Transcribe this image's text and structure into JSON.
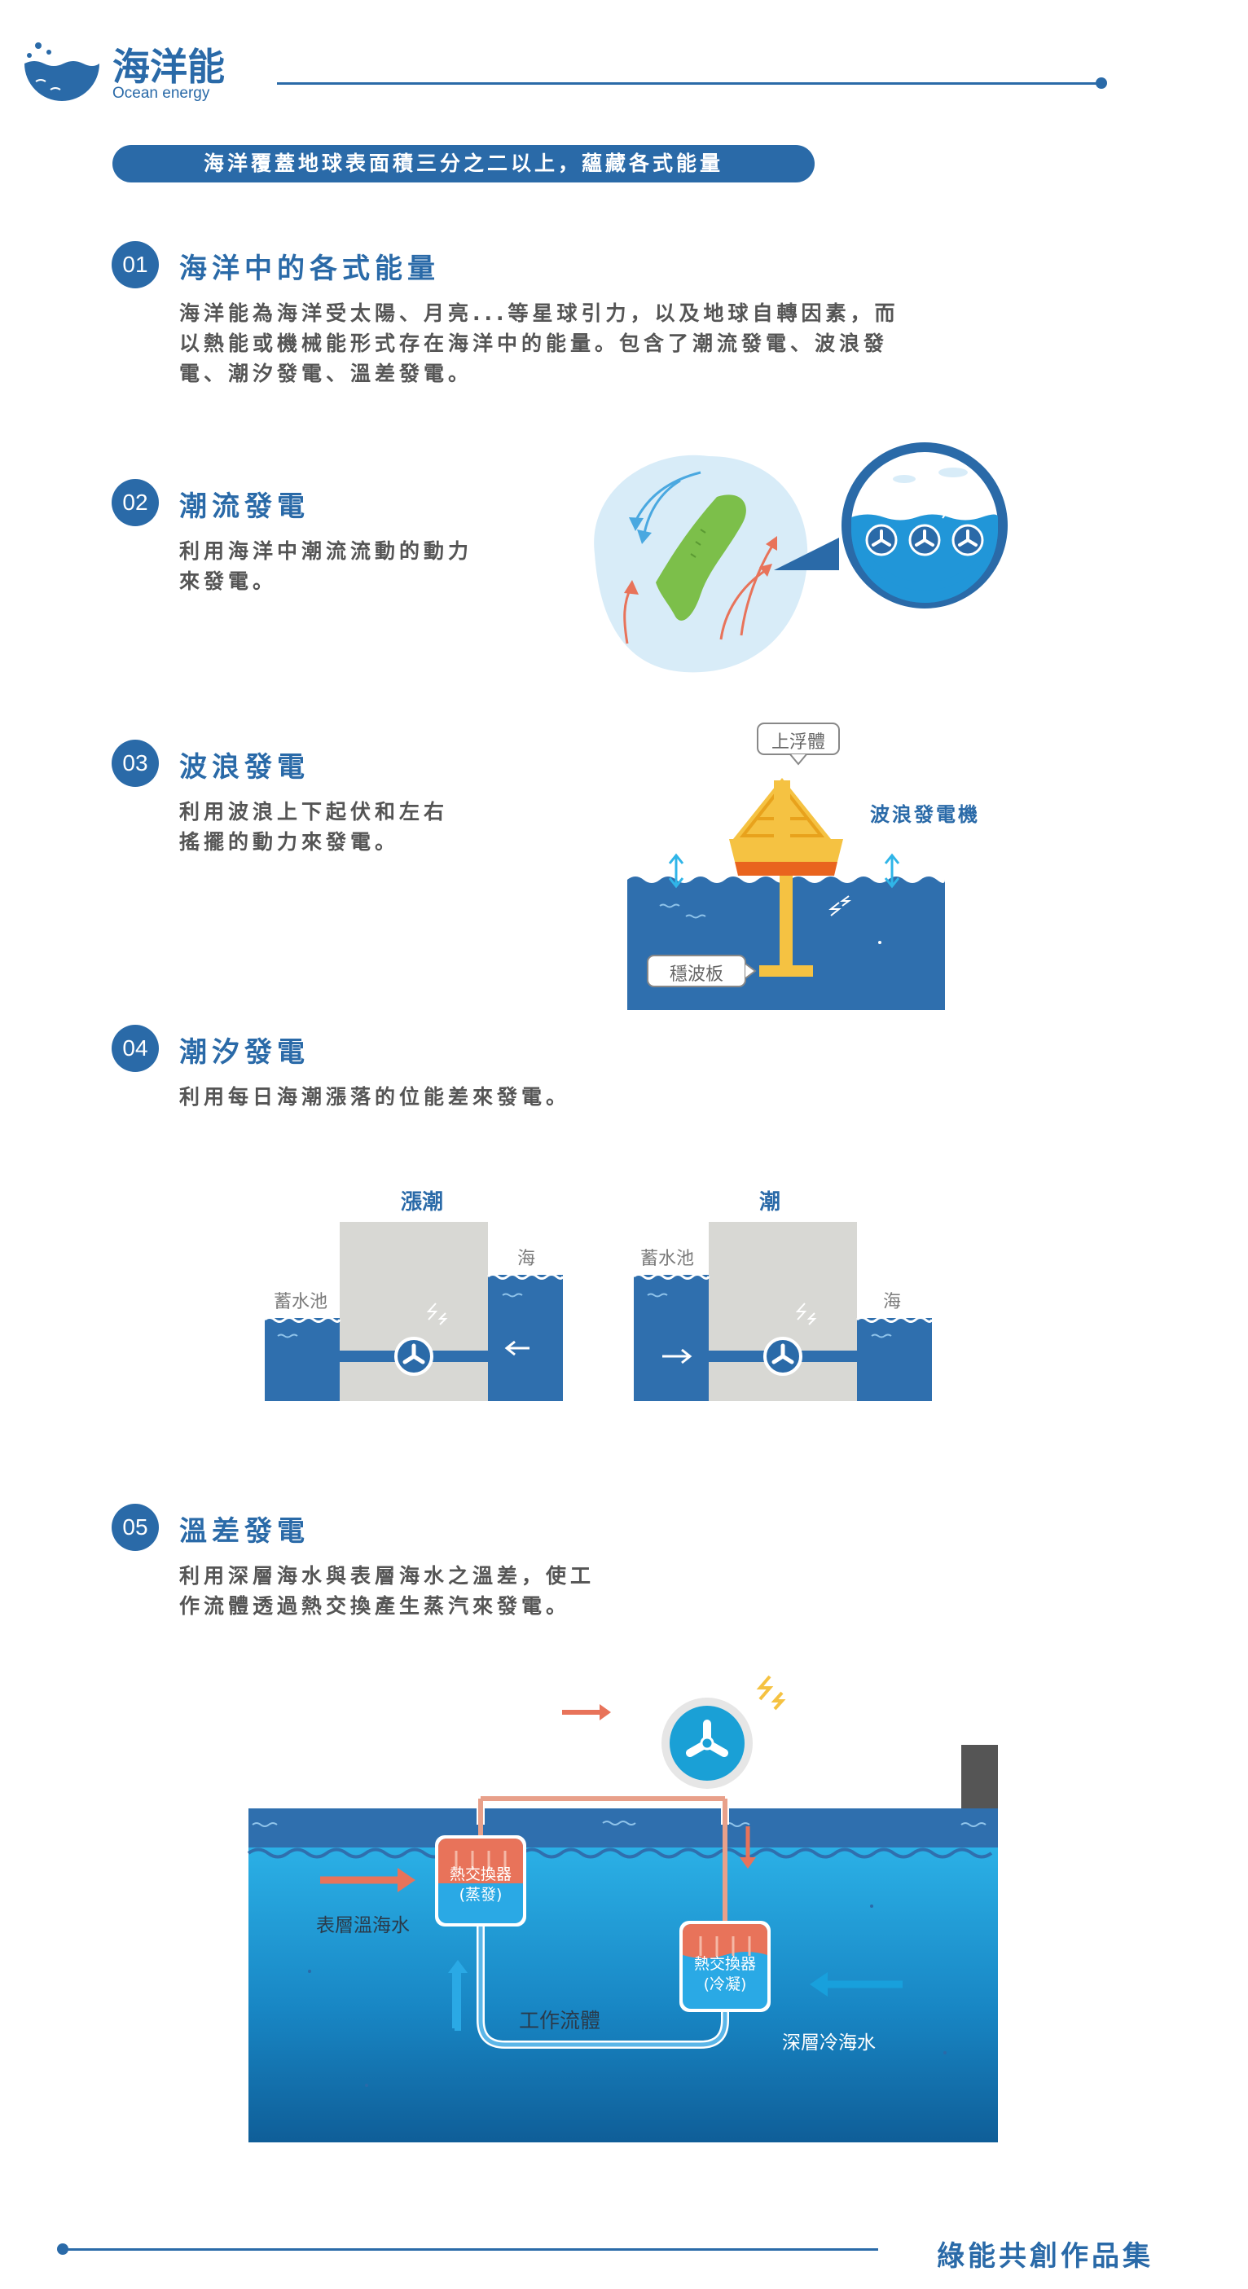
{
  "header": {
    "title": "海洋能",
    "subtitle": "Ocean energy"
  },
  "banner": "海洋覆蓋地球表面積三分之二以上，蘊藏各式能量",
  "sections": [
    {
      "num": "01",
      "title": "海洋中的各式能量",
      "lines": [
        "海洋能為海洋受太陽、月亮...等星球引力，以及地球自轉因素，而",
        "以熱能或機械能形式存在海洋中的能量。包含了潮流發電、波浪發",
        "電、潮汐發電、溫差發電。"
      ]
    },
    {
      "num": "02",
      "title": "潮流發電",
      "lines": [
        "利用海洋中潮流流動的動力",
        "來發電。"
      ]
    },
    {
      "num": "03",
      "title": "波浪發電",
      "lines": [
        "利用波浪上下起伏和左右",
        "搖擺的動力來發電。"
      ]
    },
    {
      "num": "04",
      "title": "潮汐發電",
      "lines": [
        "利用每日海潮漲落的位能差來發電。"
      ]
    },
    {
      "num": "05",
      "title": "溫差發電",
      "lines": [
        "利用深層海水與表層海水之溫差，使工",
        "作流體透過熱交換產生蒸汽來發電。"
      ]
    }
  ],
  "wave_diagram": {
    "float_label": "上浮體",
    "machine_label": "波浪發電機",
    "plate_label": "穩波板"
  },
  "tidal_diagram": {
    "left": {
      "title": "漲潮",
      "reservoir": "蓄水池",
      "sea": "海"
    },
    "right": {
      "title": "潮",
      "reservoir": "蓄水池",
      "sea": "海"
    }
  },
  "otec_diagram": {
    "evaporator": [
      "熱交換器",
      "(蒸發)"
    ],
    "condenser": [
      "熱交換器",
      "(冷凝)"
    ],
    "surface_water": "表層溫海水",
    "deep_water": "深層冷海水",
    "working_fluid": "工作流體"
  },
  "footer": "綠能共創作品集",
  "colors": {
    "primary": "#2a6aa8",
    "sea": "#2f6fae",
    "orange": "#e8735a",
    "cyan": "#18a0dc",
    "yellow": "#f5c242"
  }
}
